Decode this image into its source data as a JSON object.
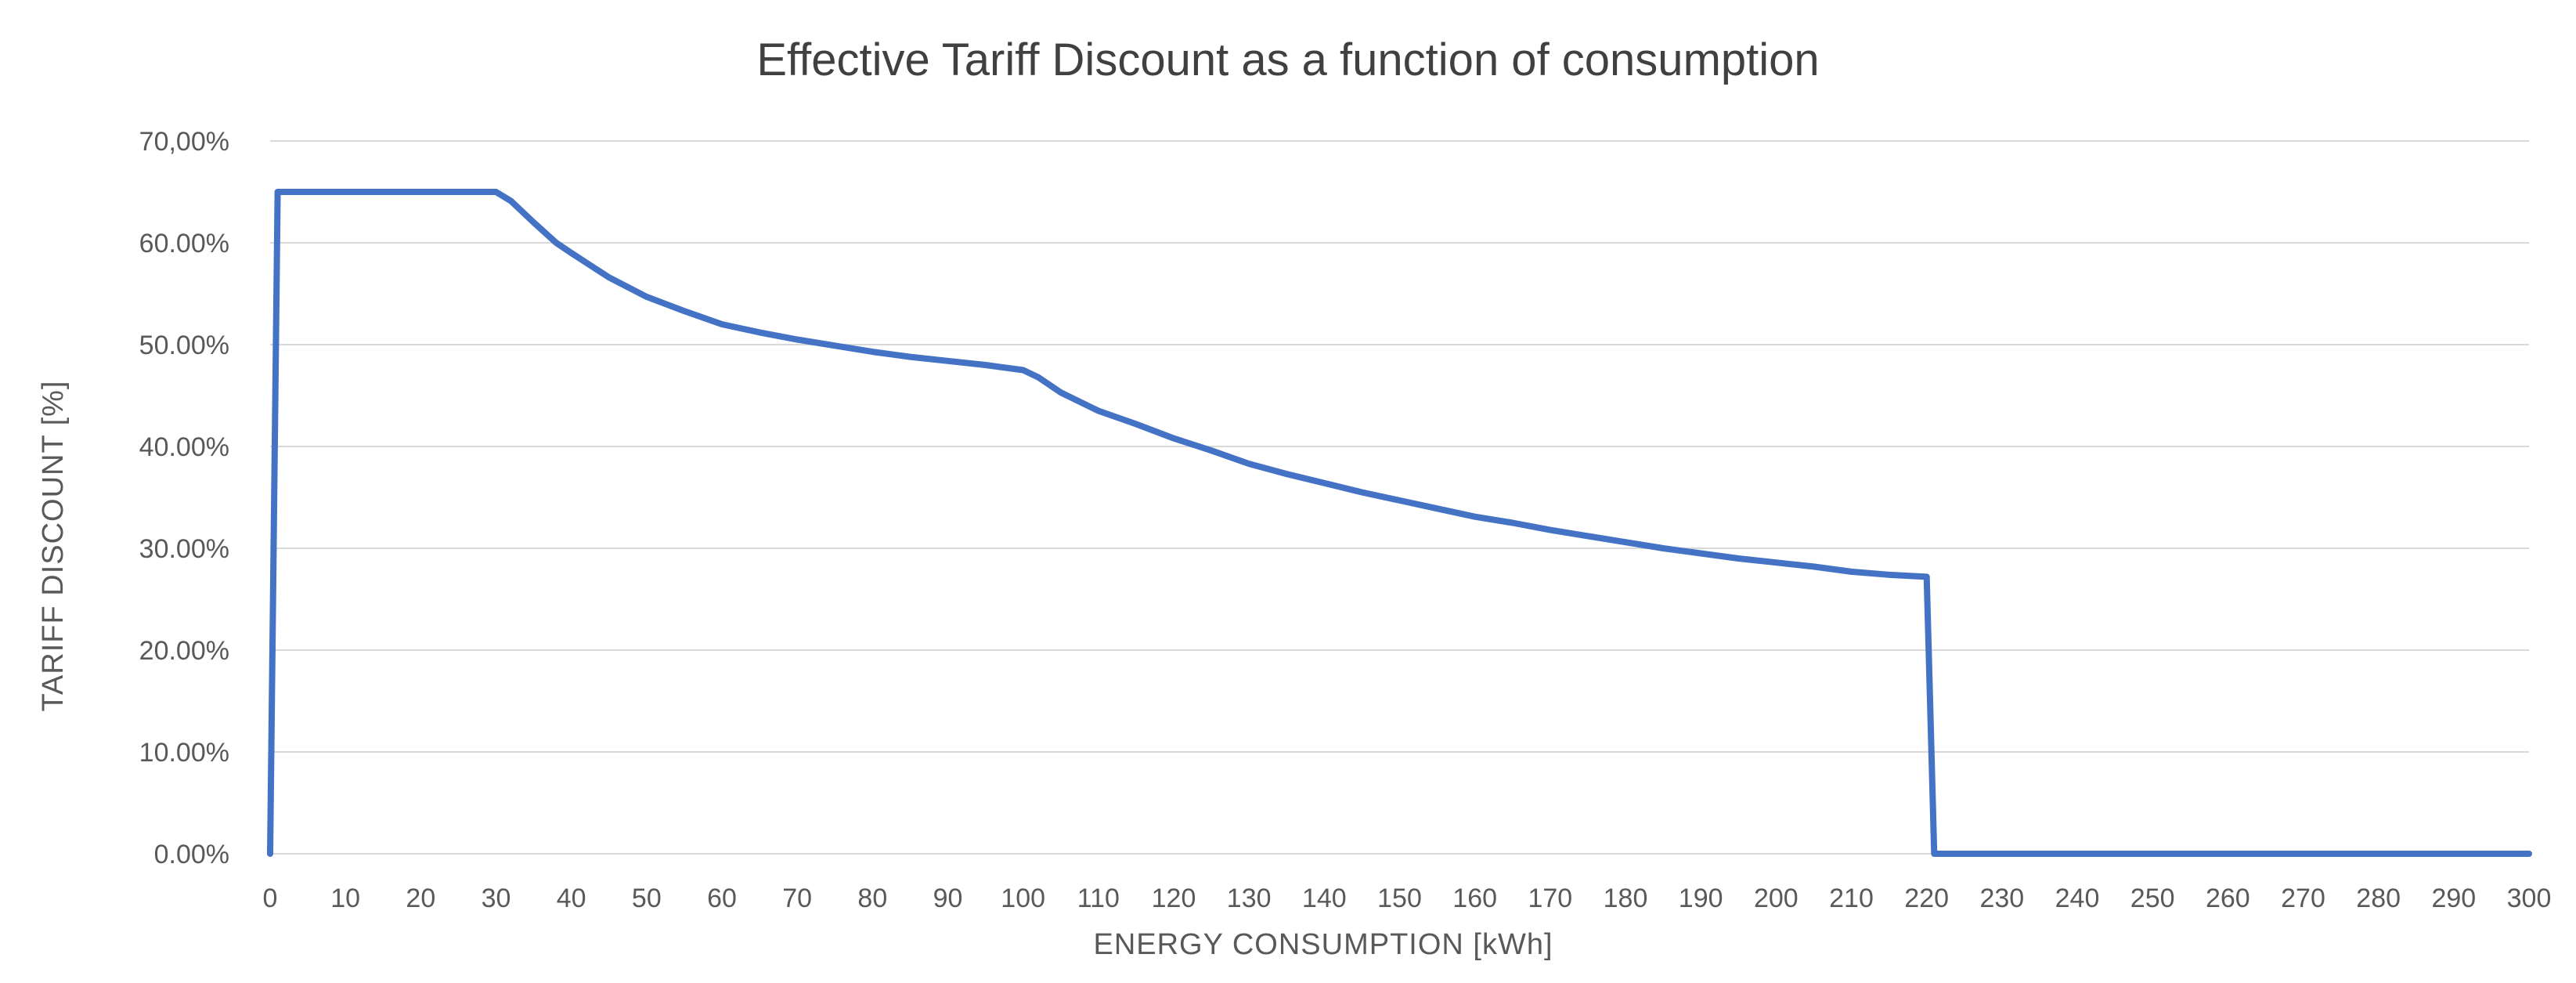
{
  "chart_data": {
    "type": "line",
    "title": "Effective Tariff Discount as a function of consumption",
    "xlabel": "ENERGY  CONSUMPTION  [kWh]",
    "ylabel": "TARIFF  DISCOUNT [%]",
    "xlim": [
      0,
      300
    ],
    "ylim": [
      0,
      70
    ],
    "x_ticks": [
      "0",
      "10",
      "20",
      "30",
      "40",
      "50",
      "60",
      "70",
      "80",
      "90",
      "100",
      "110",
      "120",
      "130",
      "140",
      "150",
      "160",
      "170",
      "180",
      "190",
      "200",
      "210",
      "220",
      "230",
      "240",
      "250",
      "260",
      "270",
      "280",
      "290",
      "300"
    ],
    "y_ticks": [
      "0.00%",
      "10.00%",
      "20.00%",
      "30.00%",
      "40.00%",
      "50.00%",
      "60.00%",
      "70,00%"
    ],
    "grid": true,
    "legend": "none",
    "colors": {
      "series": "#4472c4",
      "grid": "#d9d9d9",
      "text": "#595959",
      "title": "#404040"
    },
    "series": [
      {
        "name": "Effective Tariff Discount",
        "x": [
          0,
          1,
          5,
          10,
          15,
          20,
          25,
          30,
          32,
          35,
          38,
          40,
          45,
          50,
          55,
          60,
          65,
          70,
          75,
          80,
          85,
          90,
          95,
          100,
          102,
          105,
          110,
          115,
          120,
          125,
          130,
          135,
          140,
          145,
          150,
          155,
          160,
          165,
          170,
          175,
          180,
          185,
          190,
          195,
          200,
          205,
          210,
          215,
          220,
          221,
          230,
          240,
          250,
          260,
          270,
          280,
          290,
          300
        ],
        "y": [
          0,
          65,
          65,
          65,
          65,
          65,
          65,
          65,
          64.1,
          62,
          60,
          59,
          56.6,
          54.7,
          53.3,
          52,
          51.2,
          50.5,
          49.9,
          49.3,
          48.8,
          48.4,
          48,
          47.5,
          46.8,
          45.3,
          43.5,
          42.2,
          40.8,
          39.6,
          38.3,
          37.3,
          36.4,
          35.5,
          34.7,
          33.9,
          33.1,
          32.5,
          31.8,
          31.2,
          30.6,
          30,
          29.5,
          29,
          28.6,
          28.2,
          27.7,
          27.4,
          27.2,
          0,
          0,
          0,
          0,
          0,
          0,
          0,
          0,
          0
        ]
      }
    ]
  }
}
